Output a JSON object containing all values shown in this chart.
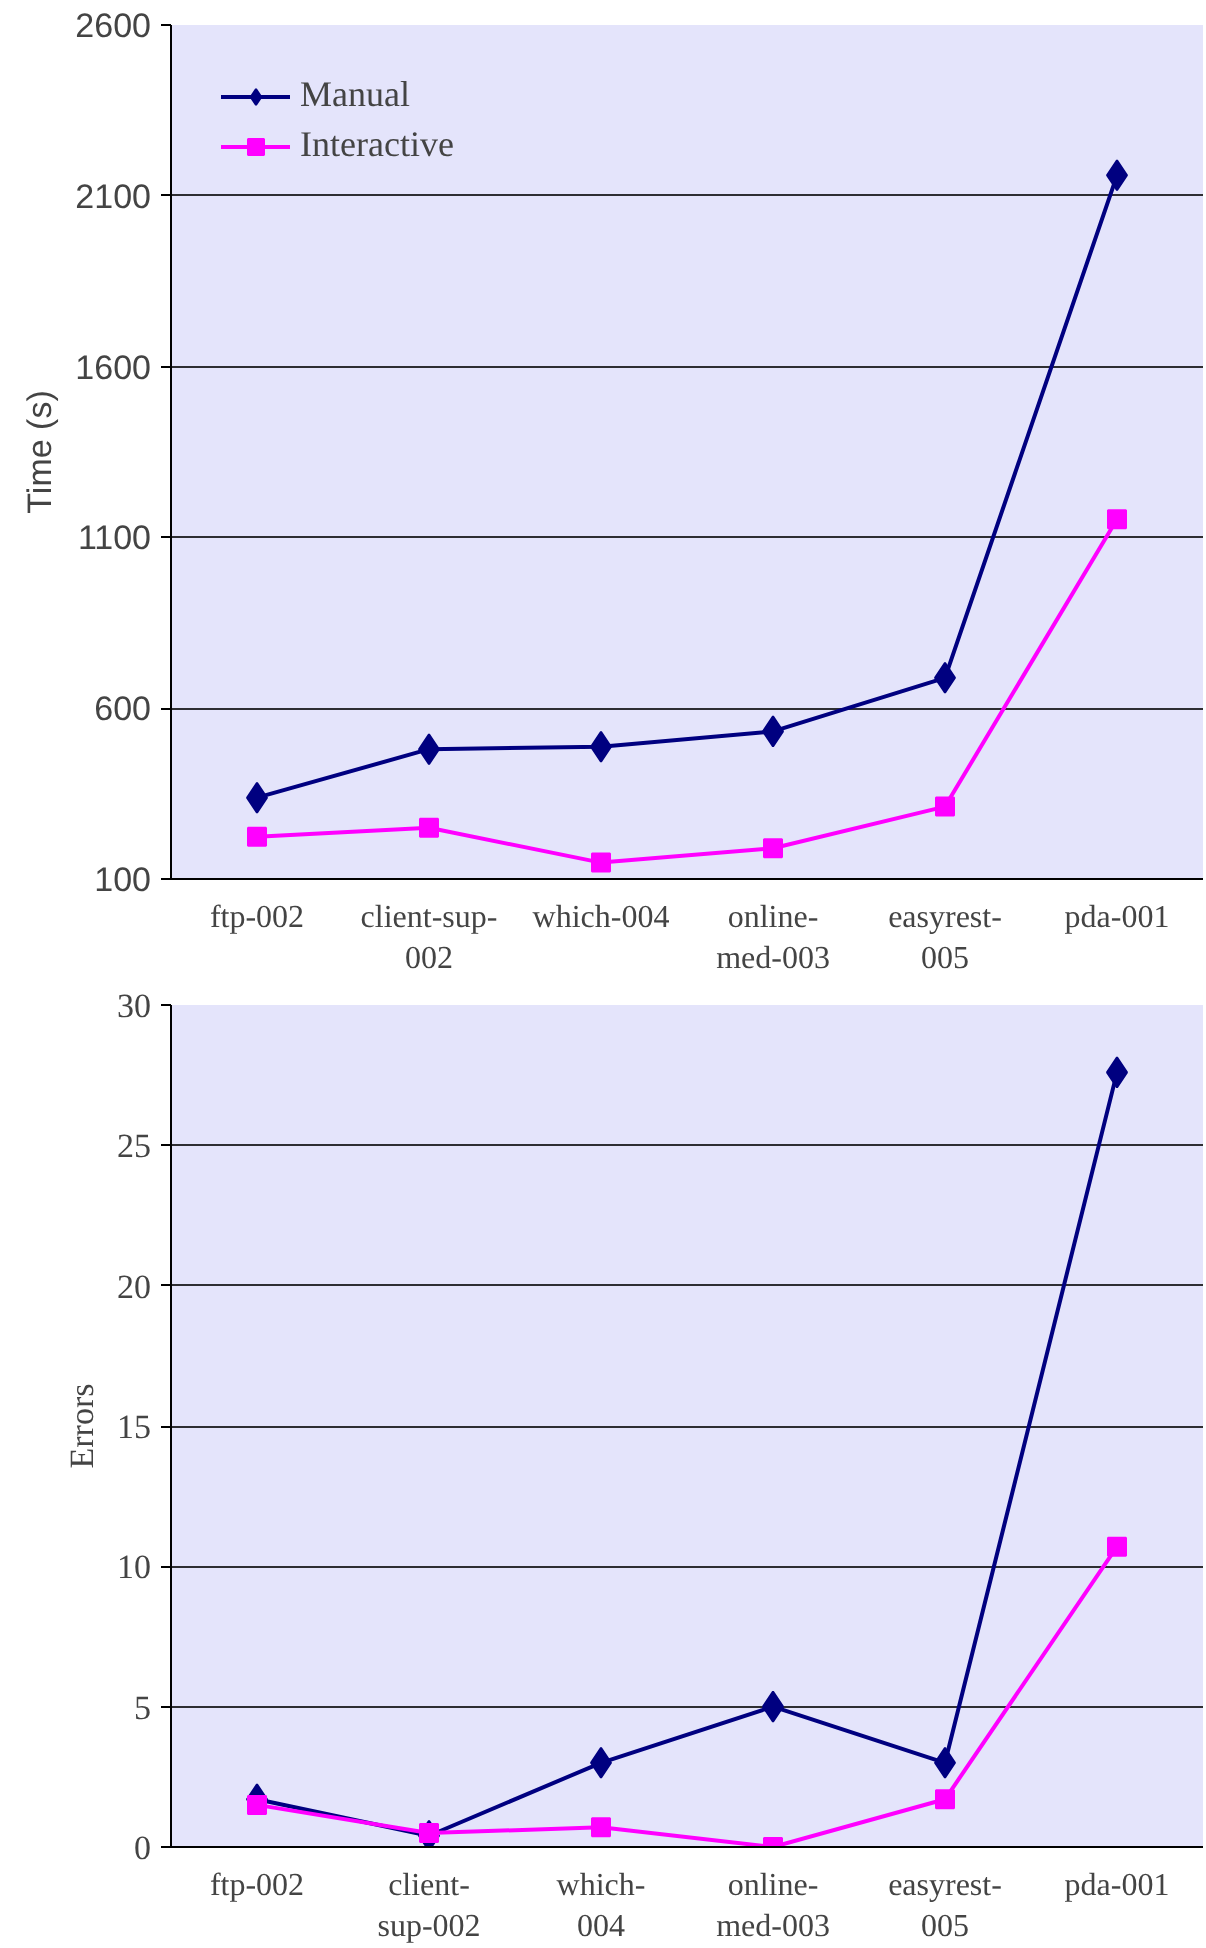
{
  "chart_data": [
    {
      "type": "line",
      "ylabel": "Time (s)",
      "categories": [
        "ftp-002",
        "client-sup-\n002",
        "which-004",
        "online-\nmed-003",
        "easyrest-\n005",
        "pda-001"
      ],
      "ylim": [
        100,
        2600
      ],
      "yticks": [
        100,
        600,
        1100,
        1600,
        2100,
        2600
      ],
      "grid": "y",
      "legend": "top left",
      "series": [
        {
          "name": "Manual",
          "color": "#000080",
          "marker": "diamond",
          "values": [
            338,
            480,
            487,
            532,
            689,
            2160
          ]
        },
        {
          "name": "Interactive",
          "color": "#ff00ff",
          "marker": "square",
          "values": [
            224,
            250,
            148,
            190,
            312,
            1153
          ]
        }
      ]
    },
    {
      "type": "line",
      "ylabel": "Errors",
      "categories": [
        "ftp-002",
        "client-\nsup-002",
        "which-\n004",
        "online-\nmed-003",
        "easyrest-\n005",
        "pda-001"
      ],
      "ylim": [
        0,
        30
      ],
      "yticks": [
        0,
        5,
        10,
        15,
        20,
        25,
        30
      ],
      "grid": "y",
      "series": [
        {
          "color": "#000080",
          "marker": "diamond",
          "values": [
            1.7,
            0.4,
            3.0,
            5.0,
            3.0,
            27.6
          ]
        },
        {
          "color": "#ff00ff",
          "marker": "square",
          "values": [
            1.5,
            0.5,
            0.7,
            0.0,
            1.7,
            10.7
          ]
        }
      ]
    }
  ]
}
